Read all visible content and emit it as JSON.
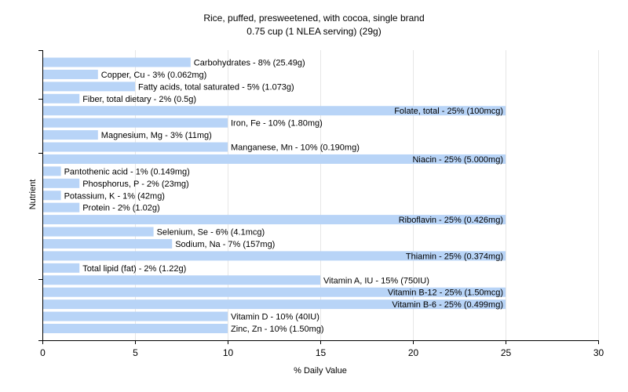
{
  "chart_data": {
    "type": "bar",
    "orientation": "horizontal",
    "title": "Rice, puffed, presweetened, with cocoa, single brand",
    "subtitle": "0.75 cup (1 NLEA serving) (29g)",
    "xlabel": "% Daily Value",
    "ylabel": "Nutrient",
    "xlim": [
      0,
      30
    ],
    "xticks": [
      0,
      5,
      10,
      15,
      20,
      25,
      30
    ],
    "grid": true,
    "bar_color": "#b8d4f7",
    "grid_color": "#e6e6e6",
    "categories": [
      "Carbohydrates",
      "Copper, Cu",
      "Fatty acids, total saturated",
      "Fiber, total dietary",
      "Folate, total",
      "Iron, Fe",
      "Magnesium, Mg",
      "Manganese, Mn",
      "Niacin",
      "Pantothenic acid",
      "Phosphorus, P",
      "Potassium, K",
      "Protein",
      "Riboflavin",
      "Selenium, Se",
      "Sodium, Na",
      "Thiamin",
      "Total lipid (fat)",
      "Vitamin A, IU",
      "Vitamin B-12",
      "Vitamin B-6",
      "Vitamin D",
      "Zinc, Zn"
    ],
    "values": [
      8,
      3,
      5,
      2,
      25,
      10,
      3,
      10,
      25,
      1,
      2,
      1,
      2,
      25,
      6,
      7,
      25,
      2,
      15,
      25,
      25,
      10,
      10
    ],
    "labels": [
      "Carbohydrates - 8% (25.49g)",
      "Copper, Cu - 3% (0.062mg)",
      "Fatty acids, total saturated - 5% (1.073g)",
      "Fiber, total dietary - 2% (0.5g)",
      "Folate, total - 25% (100mcg)",
      "Iron, Fe - 10% (1.80mg)",
      "Magnesium, Mg - 3% (11mg)",
      "Manganese, Mn - 10% (0.190mg)",
      "Niacin - 25% (5.000mg)",
      "Pantothenic acid - 1% (0.149mg)",
      "Phosphorus, P - 2% (23mg)",
      "Potassium, K - 1% (42mg)",
      "Protein - 2% (1.02g)",
      "Riboflavin - 25% (0.426mg)",
      "Selenium, Se - 6% (4.1mcg)",
      "Sodium, Na - 7% (157mg)",
      "Thiamin - 25% (0.374mg)",
      "Total lipid (fat) - 2% (1.22g)",
      "Vitamin A, IU - 15% (750IU)",
      "Vitamin B-12 - 25% (1.50mcg)",
      "Vitamin B-6 - 25% (0.499mg)",
      "Vitamin D - 10% (40IU)",
      "Zinc, Zn - 10% (1.50mg)"
    ]
  }
}
